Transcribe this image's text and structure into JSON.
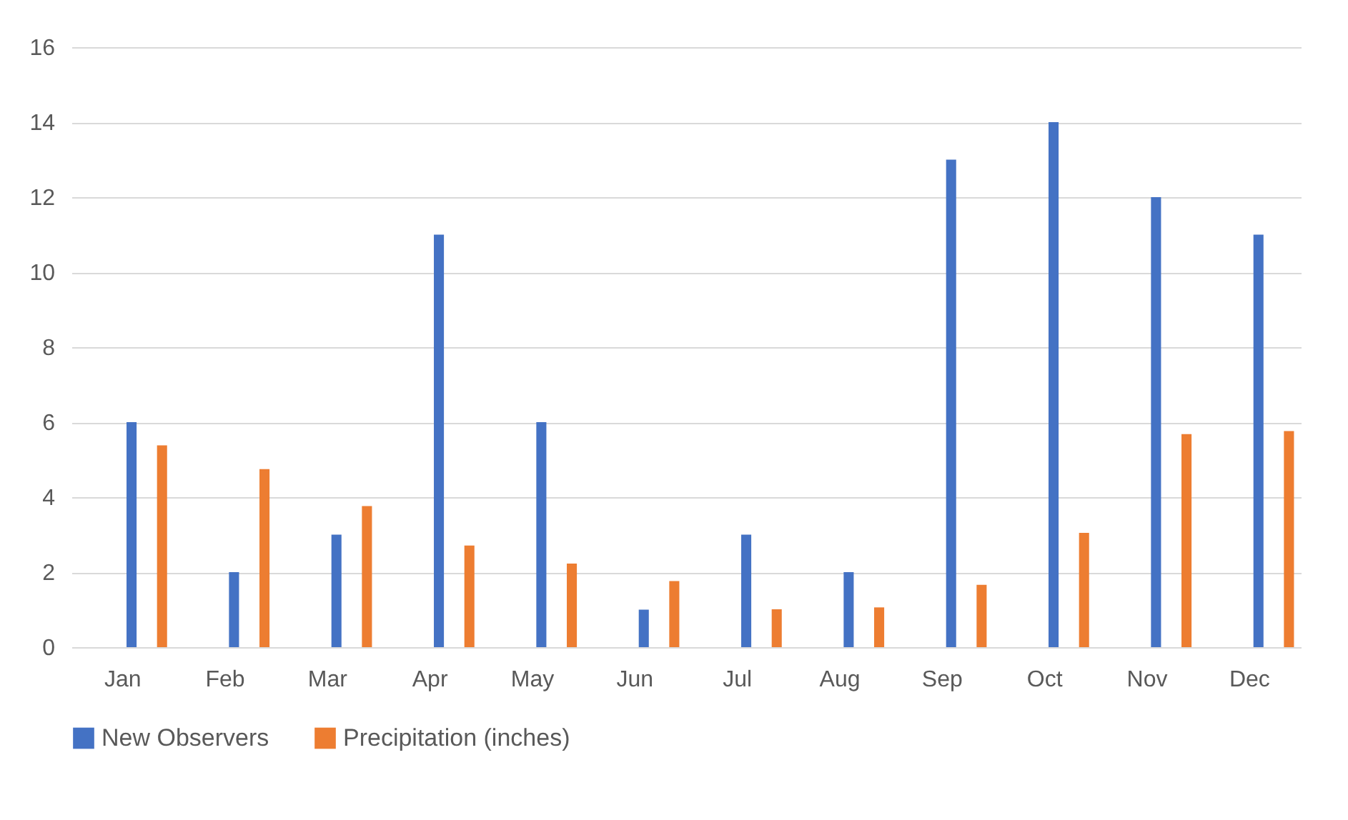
{
  "chart_data": {
    "type": "bar",
    "categories": [
      "Jan",
      "Feb",
      "Mar",
      "Apr",
      "May",
      "Jun",
      "Jul",
      "Aug",
      "Sep",
      "Oct",
      "Nov",
      "Dec"
    ],
    "series": [
      {
        "name": "New Observers",
        "color": "#4472c4",
        "values": [
          6,
          2,
          3,
          11,
          6,
          1,
          3,
          2,
          13,
          14,
          12,
          11
        ]
      },
      {
        "name": "Precipitation (inches)",
        "color": "#ed7d31",
        "values": [
          5.38,
          4.75,
          3.76,
          2.71,
          2.23,
          1.76,
          1.01,
          1.06,
          1.66,
          3.05,
          5.68,
          5.76
        ]
      }
    ],
    "ylim": [
      0,
      16
    ],
    "yticks": [
      0,
      2,
      4,
      6,
      8,
      10,
      12,
      14,
      16
    ],
    "grid": "y",
    "legend": "bottom"
  }
}
